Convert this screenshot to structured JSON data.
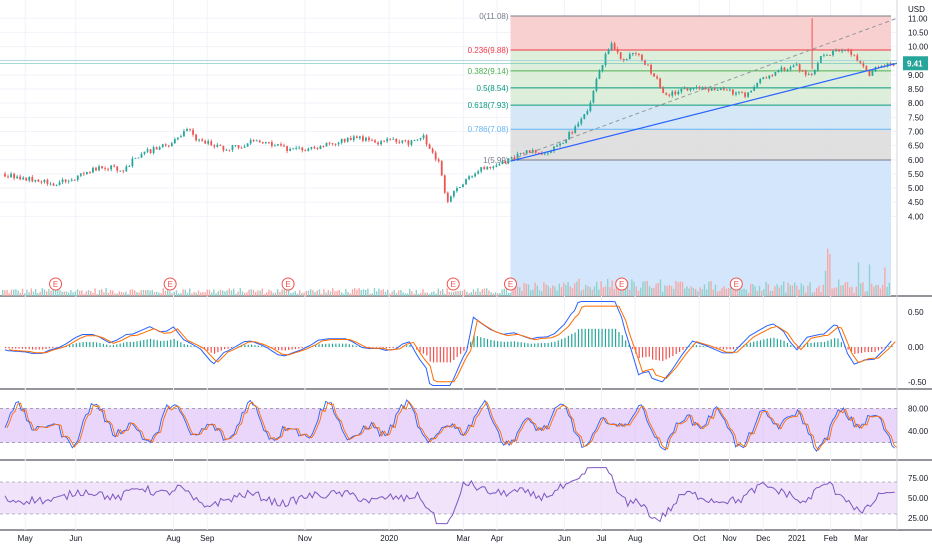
{
  "chart_data": {
    "type": "candlestick",
    "currency": "USD",
    "last_price": "9.41",
    "price_axis_ticks": [
      "11.00",
      "10.50",
      "10.00",
      "9.50",
      "9.00",
      "8.50",
      "8.00",
      "7.50",
      "7.00",
      "6.50",
      "6.00",
      "5.50",
      "5.00",
      "4.50",
      "4.00"
    ],
    "price_ylim": [
      4.0,
      11.2
    ],
    "time_labels": [
      {
        "label": "May",
        "t": 0.6
      },
      {
        "label": "Jun",
        "t": 2.1
      },
      {
        "label": "Aug",
        "t": 5.0
      },
      {
        "label": "Sep",
        "t": 6.0
      },
      {
        "label": "Nov",
        "t": 8.9
      },
      {
        "label": "2020",
        "t": 11.4
      },
      {
        "label": "Mar",
        "t": 13.6
      },
      {
        "label": "Apr",
        "t": 14.6
      },
      {
        "label": "Jun",
        "t": 16.6
      },
      {
        "label": "Jul",
        "t": 17.7
      },
      {
        "label": "Aug",
        "t": 18.7
      },
      {
        "label": "Oct",
        "t": 20.6
      },
      {
        "label": "Nov",
        "t": 21.5
      },
      {
        "label": "Dec",
        "t": 22.5
      },
      {
        "label": "2021",
        "t": 23.5
      },
      {
        "label": "Feb",
        "t": 24.5
      },
      {
        "label": "Mar",
        "t": 25.4
      }
    ],
    "fibonacci": [
      {
        "ratio_label": "0(11.08)",
        "price": 11.08,
        "color": "#787b86"
      },
      {
        "ratio_label": "0.236(9.88)",
        "price": 9.88,
        "color": "#f23645"
      },
      {
        "ratio_label": "0.382(9.14)",
        "price": 9.14,
        "color": "#4caf50"
      },
      {
        "ratio_label": "0.5(8.54)",
        "price": 8.54,
        "color": "#089981"
      },
      {
        "ratio_label": "0.618(7.93)",
        "price": 7.93,
        "color": "#089981"
      },
      {
        "ratio_label": "0.786(7.08)",
        "price": 7.08,
        "color": "#64b5f6"
      },
      {
        "ratio_label": "1(5.99)",
        "price": 5.99,
        "color": "#787b86"
      }
    ],
    "earnings_markers": [
      {
        "label": "E",
        "t": 1.5
      },
      {
        "label": "E",
        "t": 4.9
      },
      {
        "label": "E",
        "t": 8.4
      },
      {
        "label": "E",
        "t": 13.3
      },
      {
        "label": "E",
        "t": 15.0
      },
      {
        "label": "E",
        "t": 18.3
      },
      {
        "label": "E",
        "t": 21.7
      }
    ],
    "trendline": {
      "start": {
        "t": 15.0,
        "price": 5.95
      },
      "end": {
        "t": 26.4,
        "price": 9.41
      },
      "color": "#2962ff"
    },
    "dashed_line": {
      "start": {
        "t": 15.0,
        "price": 5.99
      },
      "end": {
        "t": 26.4,
        "price": 11.0
      }
    },
    "price_series": [
      {
        "t": 0.0,
        "price": 5.5
      },
      {
        "t": 0.5,
        "price": 5.35
      },
      {
        "t": 1.0,
        "price": 5.3
      },
      {
        "t": 1.5,
        "price": 5.15
      },
      {
        "t": 2.0,
        "price": 5.3
      },
      {
        "t": 2.5,
        "price": 5.6
      },
      {
        "t": 3.0,
        "price": 5.75
      },
      {
        "t": 3.5,
        "price": 5.65
      },
      {
        "t": 4.0,
        "price": 6.2
      },
      {
        "t": 4.5,
        "price": 6.4
      },
      {
        "t": 5.0,
        "price": 6.6
      },
      {
        "t": 5.4,
        "price": 7.1
      },
      {
        "t": 5.7,
        "price": 6.7
      },
      {
        "t": 6.0,
        "price": 6.6
      },
      {
        "t": 6.5,
        "price": 6.4
      },
      {
        "t": 7.0,
        "price": 6.5
      },
      {
        "t": 7.5,
        "price": 6.7
      },
      {
        "t": 8.0,
        "price": 6.55
      },
      {
        "t": 8.5,
        "price": 6.3
      },
      {
        "t": 9.0,
        "price": 6.4
      },
      {
        "t": 9.5,
        "price": 6.5
      },
      {
        "t": 10.0,
        "price": 6.7
      },
      {
        "t": 10.5,
        "price": 6.8
      },
      {
        "t": 11.0,
        "price": 6.6
      },
      {
        "t": 11.5,
        "price": 6.7
      },
      {
        "t": 12.0,
        "price": 6.6
      },
      {
        "t": 12.4,
        "price": 6.85
      },
      {
        "t": 12.7,
        "price": 6.2
      },
      {
        "t": 12.9,
        "price": 5.8
      },
      {
        "t": 13.1,
        "price": 4.5
      },
      {
        "t": 13.3,
        "price": 4.8
      },
      {
        "t": 13.6,
        "price": 5.2
      },
      {
        "t": 14.0,
        "price": 5.6
      },
      {
        "t": 14.5,
        "price": 5.8
      },
      {
        "t": 15.0,
        "price": 6.0
      },
      {
        "t": 15.5,
        "price": 6.3
      },
      {
        "t": 16.0,
        "price": 6.25
      },
      {
        "t": 16.5,
        "price": 6.6
      },
      {
        "t": 17.0,
        "price": 7.2
      },
      {
        "t": 17.3,
        "price": 7.8
      },
      {
        "t": 17.6,
        "price": 9.0
      },
      {
        "t": 18.0,
        "price": 10.2
      },
      {
        "t": 18.3,
        "price": 9.5
      },
      {
        "t": 18.7,
        "price": 9.8
      },
      {
        "t": 19.0,
        "price": 9.4
      },
      {
        "t": 19.3,
        "price": 8.9
      },
      {
        "t": 19.6,
        "price": 8.3
      },
      {
        "t": 20.0,
        "price": 8.4
      },
      {
        "t": 20.5,
        "price": 8.6
      },
      {
        "t": 21.0,
        "price": 8.5
      },
      {
        "t": 21.5,
        "price": 8.4
      },
      {
        "t": 22.0,
        "price": 8.3
      },
      {
        "t": 22.5,
        "price": 8.9
      },
      {
        "t": 23.0,
        "price": 9.2
      },
      {
        "t": 23.5,
        "price": 9.3
      },
      {
        "t": 23.9,
        "price": 8.9
      },
      {
        "t": 24.2,
        "price": 9.6
      },
      {
        "t": 24.6,
        "price": 9.8
      },
      {
        "t": 25.0,
        "price": 9.9
      },
      {
        "t": 25.3,
        "price": 9.5
      },
      {
        "t": 25.6,
        "price": 9.0
      },
      {
        "t": 25.9,
        "price": 9.3
      },
      {
        "t": 26.2,
        "price": 9.4
      },
      {
        "t": 26.4,
        "price": 9.41
      }
    ],
    "macd_panel": {
      "ticks": [
        "0.50",
        "0.00",
        "-0.50"
      ],
      "ylim": [
        -0.6,
        0.7
      ]
    },
    "stoch_panel": {
      "ticks": [
        "80.00",
        "40.00"
      ],
      "ylim": [
        0,
        100
      ],
      "band": [
        20,
        80
      ]
    },
    "rsi_panel": {
      "ticks": [
        "75.00",
        "50.00",
        "25.00"
      ],
      "ylim": [
        15,
        90
      ],
      "band": [
        30,
        70
      ]
    }
  }
}
